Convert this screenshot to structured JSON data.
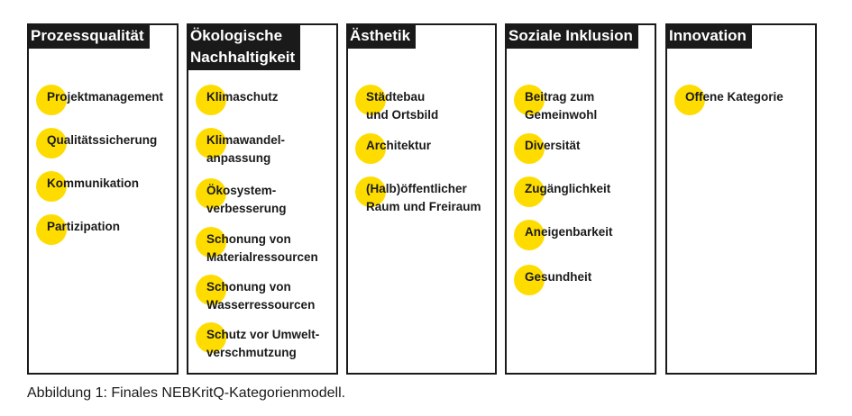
{
  "columns": [
    {
      "header": "Prozessqualität",
      "items": [
        "Projektmanagement",
        "Qualitätssicherung",
        "Kommunikation",
        "Partizipation"
      ]
    },
    {
      "header": "Ökologische\nNachhaltigkeit",
      "items": [
        "Klimaschutz",
        "Klimawandel-\nanpassung",
        "Ökosystem-\nverbesserung",
        "Schonung von\nMaterialressourcen",
        "Schonung von\nWasserressourcen",
        "Schutz vor Umwelt-\nverschmutzung"
      ]
    },
    {
      "header": "Ästhetik",
      "items": [
        "Städtebau\nund Ortsbild",
        "Architektur",
        "(Halb)öffentlicher\nRaum und Freiraum"
      ]
    },
    {
      "header": "Soziale Inklusion",
      "items": [
        "Beitrag zum\nGemeinwohl",
        "Diversität",
        "Zugänglichkeit",
        "Aneigenbarkeit",
        "Gesundheit"
      ]
    },
    {
      "header": "Innovation",
      "items": [
        "Offene Kategorie"
      ]
    }
  ],
  "caption": "Abbildung 1: Finales NEBKritQ-Kategorienmodell.",
  "colors": {
    "accent_dot": "#ffdc00",
    "header_bg": "#1a1a1a",
    "header_text": "#ffffff",
    "border": "#1a1a1a"
  }
}
